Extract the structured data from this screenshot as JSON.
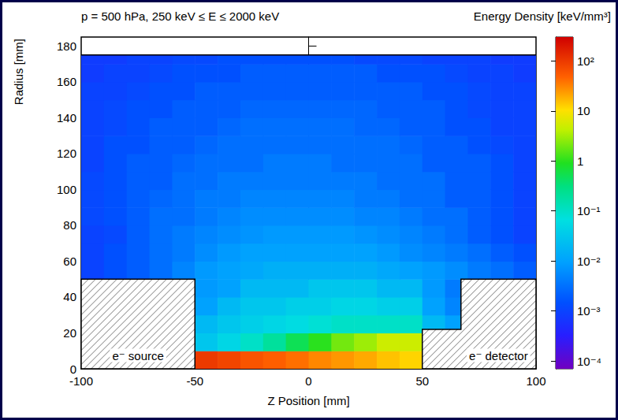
{
  "chart_data": {
    "type": "heatmap",
    "title": "p = 500 hPa, 250 keV ≤ E ≤ 2000 keV",
    "colorbar_label": "Energy Density [keV/mm³]",
    "x_label": "Z Position [mm]",
    "y_label": "Radius [mm]",
    "xlim": [
      -100,
      100
    ],
    "xticks": [
      -100,
      -50,
      0,
      50,
      100
    ],
    "ylim": [
      0,
      185
    ],
    "yticks": [
      0,
      20,
      40,
      60,
      80,
      100,
      120,
      140,
      160,
      180
    ],
    "grid": false,
    "z_bins": [
      -100,
      -90,
      -80,
      -70,
      -60,
      -50,
      -40,
      -30,
      -20,
      -10,
      0,
      10,
      20,
      30,
      40,
      50,
      60,
      70,
      80,
      90,
      100
    ],
    "r_bins": [
      0,
      10,
      20,
      30,
      40,
      50,
      60,
      70,
      80,
      90,
      100,
      110,
      120,
      130,
      140,
      150,
      160,
      170,
      175
    ],
    "values": [
      [
        null,
        null,
        null,
        null,
        null,
        100,
        80,
        60,
        50,
        40,
        30,
        25,
        20,
        15,
        12,
        null,
        null,
        null,
        null,
        null
      ],
      [
        null,
        null,
        null,
        null,
        null,
        0.03,
        0.05,
        0.1,
        0.2,
        0.5,
        1,
        2,
        3,
        5,
        5,
        null,
        null,
        null,
        null,
        null
      ],
      [
        null,
        null,
        null,
        null,
        null,
        0.02,
        0.03,
        0.04,
        0.05,
        0.06,
        0.08,
        0.1,
        0.1,
        0.1,
        0.1,
        0.02,
        0.01,
        null,
        null,
        null
      ],
      [
        null,
        null,
        null,
        null,
        null,
        0.01,
        0.02,
        0.03,
        0.03,
        0.04,
        0.04,
        0.05,
        0.05,
        0.04,
        0.04,
        0.01,
        0.005,
        null,
        null,
        null
      ],
      [
        null,
        null,
        null,
        null,
        null,
        0.008,
        0.01,
        0.02,
        0.02,
        0.02,
        0.03,
        0.03,
        0.03,
        0.02,
        0.02,
        0.008,
        0.004,
        null,
        null,
        null
      ],
      [
        0.001,
        0.0015,
        0.002,
        0.003,
        0.005,
        0.008,
        0.01,
        0.012,
        0.015,
        0.015,
        0.015,
        0.015,
        0.015,
        0.012,
        0.01,
        0.008,
        0.006,
        0.004,
        0.003,
        0.002
      ],
      [
        0.001,
        0.0015,
        0.002,
        0.003,
        0.004,
        0.006,
        0.008,
        0.01,
        0.01,
        0.01,
        0.01,
        0.01,
        0.01,
        0.008,
        0.006,
        0.005,
        0.004,
        0.003,
        0.002,
        0.0015
      ],
      [
        0.001,
        0.0012,
        0.002,
        0.003,
        0.004,
        0.005,
        0.006,
        0.007,
        0.008,
        0.008,
        0.008,
        0.008,
        0.007,
        0.006,
        0.005,
        0.004,
        0.003,
        0.002,
        0.0015,
        0.001
      ],
      [
        0.0012,
        0.0015,
        0.002,
        0.003,
        0.003,
        0.004,
        0.005,
        0.006,
        0.006,
        0.006,
        0.006,
        0.006,
        0.005,
        0.005,
        0.004,
        0.003,
        0.003,
        0.002,
        0.0015,
        0.001
      ],
      [
        0.0012,
        0.0015,
        0.002,
        0.0025,
        0.003,
        0.004,
        0.004,
        0.005,
        0.005,
        0.005,
        0.005,
        0.005,
        0.004,
        0.004,
        0.003,
        0.003,
        0.002,
        0.002,
        0.0015,
        0.001
      ],
      [
        0.0012,
        0.0015,
        0.002,
        0.002,
        0.003,
        0.003,
        0.004,
        0.004,
        0.004,
        0.004,
        0.004,
        0.004,
        0.004,
        0.003,
        0.003,
        0.003,
        0.002,
        0.002,
        0.0015,
        0.001
      ],
      [
        0.001,
        0.0015,
        0.002,
        0.002,
        0.0025,
        0.003,
        0.003,
        0.003,
        0.004,
        0.004,
        0.004,
        0.003,
        0.003,
        0.003,
        0.003,
        0.002,
        0.002,
        0.002,
        0.0015,
        0.001
      ],
      [
        0.001,
        0.0015,
        0.0015,
        0.002,
        0.002,
        0.0025,
        0.003,
        0.003,
        0.003,
        0.003,
        0.003,
        0.003,
        0.003,
        0.003,
        0.0025,
        0.002,
        0.002,
        0.0015,
        0.0012,
        0.001
      ],
      [
        0.001,
        0.0012,
        0.0015,
        0.002,
        0.002,
        0.002,
        0.0025,
        0.003,
        0.003,
        0.003,
        0.003,
        0.003,
        0.0025,
        0.0025,
        0.002,
        0.002,
        0.0015,
        0.0015,
        0.001,
        0.001
      ],
      [
        0.001,
        0.0012,
        0.0015,
        0.0015,
        0.002,
        0.002,
        0.002,
        0.0025,
        0.0025,
        0.0025,
        0.0025,
        0.0025,
        0.0025,
        0.002,
        0.002,
        0.002,
        0.0015,
        0.0012,
        0.001,
        0.001
      ],
      [
        0.001,
        0.001,
        0.0012,
        0.0015,
        0.0015,
        0.002,
        0.002,
        0.002,
        0.002,
        0.002,
        0.002,
        0.002,
        0.002,
        0.002,
        0.002,
        0.0015,
        0.0015,
        0.0012,
        0.001,
        0.001
      ],
      [
        0.0008,
        0.001,
        0.001,
        0.0012,
        0.0015,
        0.0015,
        0.0015,
        0.002,
        0.002,
        0.002,
        0.002,
        0.002,
        0.002,
        0.0015,
        0.0015,
        0.0015,
        0.0012,
        0.001,
        0.001,
        0.0008
      ],
      [
        0.0008,
        0.0008,
        0.001,
        0.001,
        0.0012,
        0.0012,
        0.0015,
        0.0015,
        0.0015,
        0.0015,
        0.0015,
        0.0015,
        0.0012,
        0.0012,
        0.0012,
        0.001,
        0.001,
        0.001,
        0.0008,
        0.0008
      ]
    ],
    "color_range": [
      7e-05,
      300
    ],
    "color_ticks": [
      {
        "value": 0.0001,
        "label": "10⁻⁴"
      },
      {
        "value": 0.001,
        "label": "10⁻³"
      },
      {
        "value": 0.01,
        "label": "10⁻²"
      },
      {
        "value": 0.1,
        "label": "10⁻¹"
      },
      1,
      10,
      {
        "value": 100,
        "label": "10²"
      }
    ],
    "regions": [
      {
        "label": "e⁻ source",
        "points": [
          [
            -100,
            0
          ],
          [
            -50,
            0
          ],
          [
            -50,
            50
          ],
          [
            -100,
            50
          ]
        ]
      },
      {
        "label": "e⁻ detector",
        "points": [
          [
            50,
            0
          ],
          [
            100,
            0
          ],
          [
            100,
            50
          ],
          [
            67,
            50
          ],
          [
            67,
            22
          ],
          [
            50,
            22
          ]
        ]
      }
    ]
  }
}
